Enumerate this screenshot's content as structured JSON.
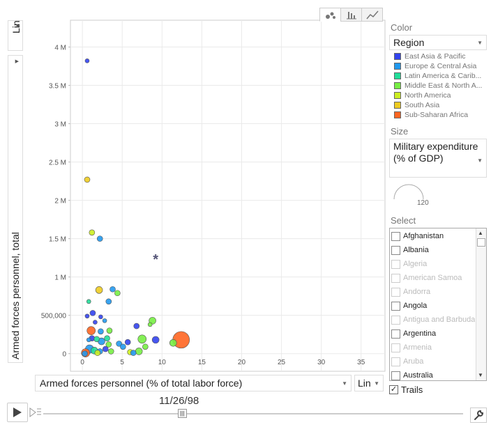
{
  "y_scale": {
    "label": "Lin"
  },
  "y_axis_select": {
    "label": "Armed forces personnel, total"
  },
  "x_axis_select": {
    "label": "Armed forces personnel (% of total labor force)"
  },
  "x_scale": {
    "label": "Lin"
  },
  "view_tabs": [
    {
      "name": "bubble-chart",
      "active": true
    },
    {
      "name": "bar-chart",
      "active": false
    },
    {
      "name": "line-chart",
      "active": false
    }
  ],
  "color": {
    "section_label": "Color",
    "selected": "Region",
    "legend": [
      {
        "label": "East Asia & Pacific",
        "color": "#3344ee"
      },
      {
        "label": "Europe & Central Asia",
        "color": "#2299ee"
      },
      {
        "label": "Latin America & Carib...",
        "color": "#22dd99"
      },
      {
        "label": "Middle East & North A...",
        "color": "#77ee44"
      },
      {
        "label": "North America",
        "color": "#ccee22"
      },
      {
        "label": "South Asia",
        "color": "#eecc22"
      },
      {
        "label": "Sub-Saharan Africa",
        "color": "#ff6622"
      }
    ]
  },
  "size": {
    "section_label": "Size",
    "selected": "Military expenditure (% of GDP)",
    "max_label": "120"
  },
  "select": {
    "section_label": "Select",
    "items": [
      {
        "label": "Afghanistan",
        "enabled": true
      },
      {
        "label": "Albania",
        "enabled": true
      },
      {
        "label": "Algeria",
        "enabled": false
      },
      {
        "label": "American Samoa",
        "enabled": false
      },
      {
        "label": "Andorra",
        "enabled": false
      },
      {
        "label": "Angola",
        "enabled": true
      },
      {
        "label": "Antigua and Barbuda",
        "enabled": false
      },
      {
        "label": "Argentina",
        "enabled": true
      },
      {
        "label": "Armenia",
        "enabled": false
      },
      {
        "label": "Aruba",
        "enabled": false
      },
      {
        "label": "Australia",
        "enabled": true
      }
    ]
  },
  "trails": {
    "label": "Trails",
    "checked": true
  },
  "timeline": {
    "date": "11/26/98",
    "position": 0.33
  },
  "chart_data": {
    "type": "scatter",
    "xlabel": "Armed forces personnel (% of total labor force)",
    "ylabel": "Armed forces personnel, total",
    "xlim": [
      -1.5,
      38
    ],
    "ylim": [
      -230000,
      4350000
    ],
    "x_ticks": [
      0,
      5,
      10,
      15,
      20,
      25,
      30,
      35
    ],
    "x_tick_labels": [
      "0",
      "5",
      "10",
      "15",
      "20",
      "25",
      "30",
      "35"
    ],
    "y_ticks": [
      0,
      500000,
      1000000,
      1500000,
      2000000,
      2500000,
      3000000,
      3500000,
      4000000
    ],
    "y_tick_labels": [
      "0",
      "500,000",
      "1 M",
      "1.5 M",
      "2 M",
      "2.5 M",
      "3 M",
      "3.5 M",
      "4 M"
    ],
    "grid": true,
    "star_marker": {
      "x": 9.2,
      "y": 1240000
    },
    "points": [
      {
        "x": 0.6,
        "y": 3820000,
        "size": 3,
        "color": "#3344ee"
      },
      {
        "x": 0.6,
        "y": 2270000,
        "size": 4,
        "color": "#eecc22"
      },
      {
        "x": 1.2,
        "y": 1580000,
        "size": 4,
        "color": "#ccee22"
      },
      {
        "x": 2.2,
        "y": 1500000,
        "size": 4,
        "color": "#2299ee"
      },
      {
        "x": 2.1,
        "y": 830000,
        "size": 5,
        "color": "#eecc22"
      },
      {
        "x": 3.8,
        "y": 840000,
        "size": 4,
        "color": "#2299ee"
      },
      {
        "x": 4.4,
        "y": 790000,
        "size": 4,
        "color": "#77ee44"
      },
      {
        "x": 3.3,
        "y": 680000,
        "size": 4,
        "color": "#2299ee"
      },
      {
        "x": 0.8,
        "y": 680000,
        "size": 3,
        "color": "#22dd99"
      },
      {
        "x": 1.3,
        "y": 530000,
        "size": 4,
        "color": "#3344ee"
      },
      {
        "x": 0.6,
        "y": 490000,
        "size": 3,
        "color": "#3344ee"
      },
      {
        "x": 2.3,
        "y": 480000,
        "size": 3,
        "color": "#3344ee"
      },
      {
        "x": 2.8,
        "y": 430000,
        "size": 3,
        "color": "#2299ee"
      },
      {
        "x": 1.6,
        "y": 410000,
        "size": 3,
        "color": "#3344ee"
      },
      {
        "x": 6.8,
        "y": 360000,
        "size": 4,
        "color": "#3344ee"
      },
      {
        "x": 8.8,
        "y": 430000,
        "size": 5,
        "color": "#77ee44"
      },
      {
        "x": 8.5,
        "y": 380000,
        "size": 3,
        "color": "#77ee44"
      },
      {
        "x": 3.4,
        "y": 300000,
        "size": 4,
        "color": "#77ee44"
      },
      {
        "x": 1.1,
        "y": 300000,
        "size": 6,
        "color": "#ff6622"
      },
      {
        "x": 2.3,
        "y": 290000,
        "size": 4,
        "color": "#2299ee"
      },
      {
        "x": 1.2,
        "y": 200000,
        "size": 4,
        "color": "#3344ee"
      },
      {
        "x": 0.8,
        "y": 180000,
        "size": 3,
        "color": "#2299ee"
      },
      {
        "x": 1.8,
        "y": 190000,
        "size": 4,
        "color": "#22dd99"
      },
      {
        "x": 2.4,
        "y": 160000,
        "size": 5,
        "color": "#2299ee"
      },
      {
        "x": 3.1,
        "y": 200000,
        "size": 4,
        "color": "#22dd99"
      },
      {
        "x": 3.3,
        "y": 120000,
        "size": 4,
        "color": "#77ee44"
      },
      {
        "x": 4.6,
        "y": 130000,
        "size": 4,
        "color": "#2299ee"
      },
      {
        "x": 5.1,
        "y": 90000,
        "size": 4,
        "color": "#2299ee"
      },
      {
        "x": 5.7,
        "y": 150000,
        "size": 4,
        "color": "#3344ee"
      },
      {
        "x": 7.5,
        "y": 190000,
        "size": 6,
        "color": "#77ee44"
      },
      {
        "x": 9.2,
        "y": 180000,
        "size": 5,
        "color": "#3344ee"
      },
      {
        "x": 7.9,
        "y": 90000,
        "size": 4,
        "color": "#77ee44"
      },
      {
        "x": 7.1,
        "y": 30000,
        "size": 5,
        "color": "#77ee44"
      },
      {
        "x": 6.0,
        "y": 20000,
        "size": 4,
        "color": "#ccee22"
      },
      {
        "x": 11.4,
        "y": 140000,
        "size": 5,
        "color": "#77ee44"
      },
      {
        "x": 12.4,
        "y": 180000,
        "size": 12,
        "color": "#ff6622"
      },
      {
        "x": 0.9,
        "y": 60000,
        "size": 6,
        "color": "#2299ee"
      },
      {
        "x": 1.5,
        "y": 40000,
        "size": 5,
        "color": "#22dd99"
      },
      {
        "x": 2.2,
        "y": 30000,
        "size": 4,
        "color": "#2299ee"
      },
      {
        "x": 2.9,
        "y": 60000,
        "size": 4,
        "color": "#3344ee"
      },
      {
        "x": 3.6,
        "y": 30000,
        "size": 4,
        "color": "#77ee44"
      },
      {
        "x": 0.4,
        "y": 10000,
        "size": 6,
        "color": "#ff6622"
      },
      {
        "x": 0.3,
        "y": 0,
        "size": 4,
        "color": "#2299ee"
      },
      {
        "x": 1.9,
        "y": 10000,
        "size": 4,
        "color": "#ccee22"
      },
      {
        "x": 6.4,
        "y": 10000,
        "size": 4,
        "color": "#2299ee"
      }
    ]
  }
}
